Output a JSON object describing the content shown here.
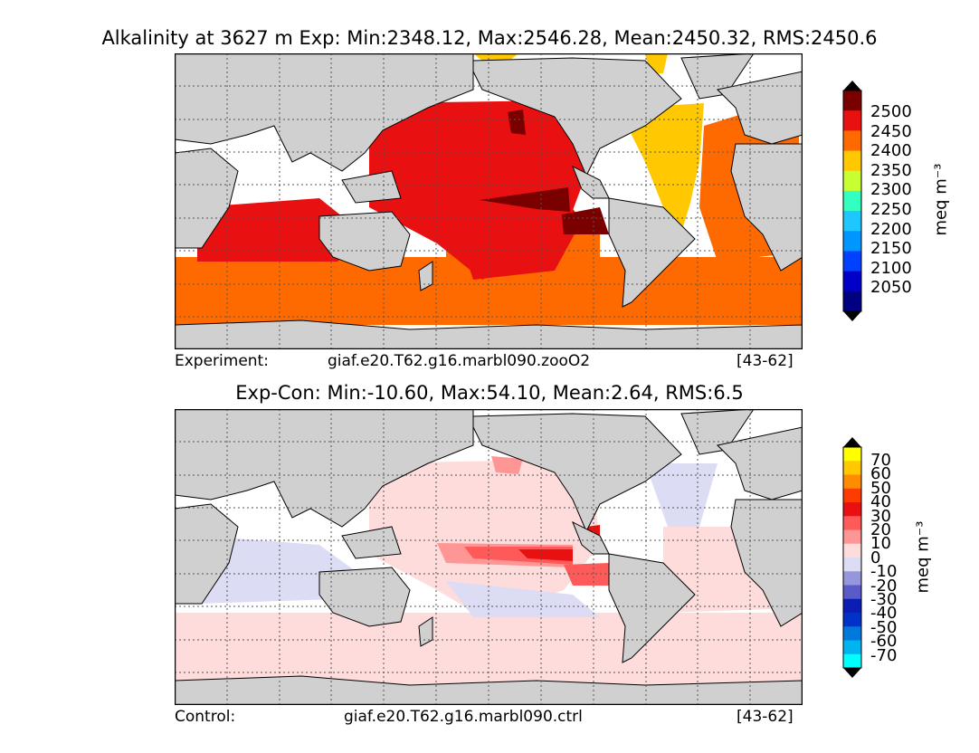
{
  "top": {
    "title": "Alkalinity at 3627 m Exp: Min:2348.12, Max:2546.28, Mean:2450.32, RMS:2450.6",
    "footer_label": "Experiment:",
    "footer_case": "giaf.e20.T62.g16.marbl090.zooO2",
    "footer_years": "[43-62]",
    "cbar_ticks": [
      "2500",
      "2450",
      "2400",
      "2350",
      "2300",
      "2250",
      "2200",
      "2150",
      "2100",
      "2050"
    ],
    "cbar_colors": [
      "#7a0000",
      "#e81010",
      "#ff6a00",
      "#ffc800",
      "#c8ff32",
      "#32ffc0",
      "#1ec8ff",
      "#0096ff",
      "#0040ff",
      "#0000c8",
      "#000080"
    ],
    "unit": "meq m⁻³"
  },
  "bottom": {
    "title": "Exp-Con: Min:-10.60, Max:54.10, Mean:2.64, RMS:6.5",
    "footer_label": "Control:",
    "footer_case": "giaf.e20.T62.g16.marbl090.ctrl",
    "footer_years": "[43-62]",
    "cbar_ticks": [
      "70",
      "60",
      "50",
      "40",
      "30",
      "20",
      "10",
      "0",
      "-10",
      "-20",
      "-30",
      "-40",
      "-50",
      "-60",
      "-70"
    ],
    "cbar_colors": [
      "#ffff00",
      "#ffc800",
      "#ff8c00",
      "#ff3c00",
      "#e81010",
      "#ff5a5a",
      "#ff9696",
      "#ffdcdc",
      "#dcdcf5",
      "#9696dc",
      "#5a5ac8",
      "#0a1eb4",
      "#0032c8",
      "#0078dc",
      "#00b4f0",
      "#00ffff"
    ],
    "unit": "meq m⁻³"
  },
  "colors": {
    "land": "#d0d0d0",
    "ocean_missing": "#ffffff",
    "grid": "#555555"
  }
}
